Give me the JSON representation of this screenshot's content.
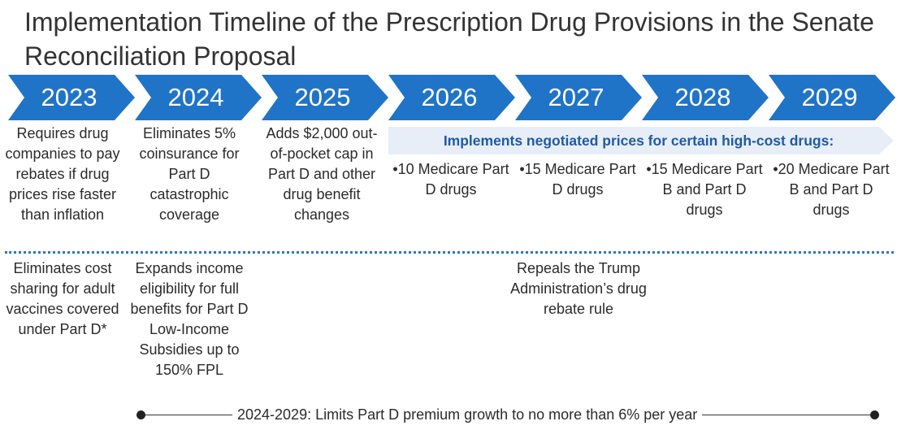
{
  "title": "Implementation Timeline of the Prescription Drug Provisions in the Senate Reconciliation Proposal",
  "colors": {
    "chevron": "#1f74c8",
    "band": "#e8eef7",
    "band_text": "#1f5aa6",
    "divider": "#2e76c4"
  },
  "years": [
    "2023",
    "2024",
    "2025",
    "2026",
    "2027",
    "2028",
    "2029"
  ],
  "top_row": {
    "y2023": "Requires drug companies to pay rebates if drug prices rise faster than inflation",
    "y2024": "Eliminates 5% coinsurance for Part D catastrophic coverage",
    "y2025": "Adds $2,000 out-of-pocket cap in Part D and other drug benefit changes",
    "band_label": "Implements negotiated prices for certain high-cost drugs:",
    "y2026": "•10 Medicare Part D drugs",
    "y2027": "•15 Medicare Part D drugs",
    "y2028": "•15 Medicare Part B and Part D drugs",
    "y2029": "•20 Medicare Part B and Part D drugs"
  },
  "bottom_row": {
    "y2023": "Eliminates cost sharing for adult vaccines covered under Part D*",
    "y2024": "Expands income eligibility for full benefits for Part D Low-Income Subsidies up to 150% FPL",
    "y2027": "Repeals the Trump Administration’s drug rebate rule"
  },
  "span_note": "2024-2029: Limits Part D premium growth to no more than 6% per year"
}
